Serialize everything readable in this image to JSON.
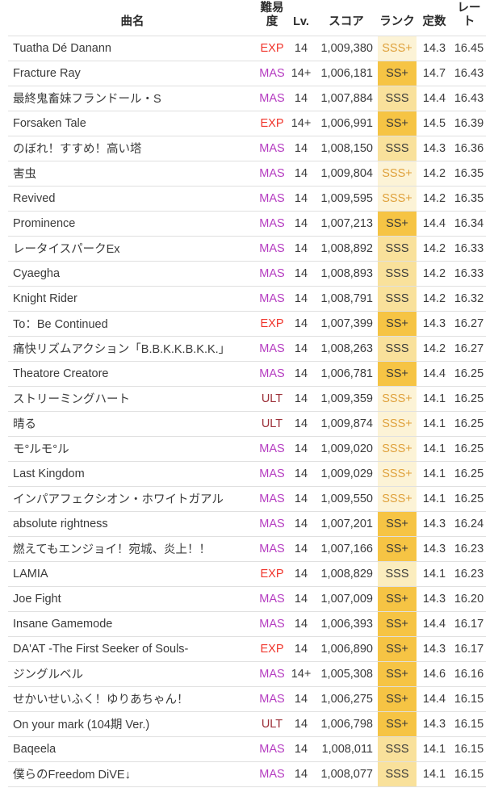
{
  "table": {
    "headers": {
      "song": "曲名",
      "difficulty": "難易度",
      "level": "Lv.",
      "score": "スコア",
      "rank": "ランク",
      "constant": "定数",
      "rate": "レート"
    },
    "rows": [
      {
        "song": "Tuatha Dé Danann",
        "difficulty": "EXP",
        "level": "14",
        "score": "1,009,380",
        "rank": "SSS+",
        "rank_style": "sss_plus",
        "constant": "14.3",
        "rate": "16.45"
      },
      {
        "song": "Fracture Ray",
        "difficulty": "MAS",
        "level": "14+",
        "score": "1,006,181",
        "rank": "SS+",
        "rank_style": "ss_plus",
        "constant": "14.7",
        "rate": "16.43"
      },
      {
        "song": "最終鬼畜妹フランドール・S",
        "difficulty": "MAS",
        "level": "14",
        "score": "1,007,884",
        "rank": "SSS",
        "rank_style": "sss",
        "constant": "14.4",
        "rate": "16.43"
      },
      {
        "song": "Forsaken Tale",
        "difficulty": "EXP",
        "level": "14+",
        "score": "1,006,991",
        "rank": "SS+",
        "rank_style": "ss_plus",
        "constant": "14.5",
        "rate": "16.39"
      },
      {
        "song": "のぼれ！すすめ！高い塔",
        "difficulty": "MAS",
        "level": "14",
        "score": "1,008,150",
        "rank": "SSS",
        "rank_style": "sss",
        "constant": "14.3",
        "rate": "16.36"
      },
      {
        "song": "害虫",
        "difficulty": "MAS",
        "level": "14",
        "score": "1,009,804",
        "rank": "SSS+",
        "rank_style": "sss_plus",
        "constant": "14.2",
        "rate": "16.35"
      },
      {
        "song": "Revived",
        "difficulty": "MAS",
        "level": "14",
        "score": "1,009,595",
        "rank": "SSS+",
        "rank_style": "sss_plus",
        "constant": "14.2",
        "rate": "16.35"
      },
      {
        "song": "Prominence",
        "difficulty": "MAS",
        "level": "14",
        "score": "1,007,213",
        "rank": "SS+",
        "rank_style": "ss_plus",
        "constant": "14.4",
        "rate": "16.34"
      },
      {
        "song": "レータイスパークEx",
        "difficulty": "MAS",
        "level": "14",
        "score": "1,008,892",
        "rank": "SSS",
        "rank_style": "sss",
        "constant": "14.2",
        "rate": "16.33"
      },
      {
        "song": "Cyaegha",
        "difficulty": "MAS",
        "level": "14",
        "score": "1,008,893",
        "rank": "SSS",
        "rank_style": "sss",
        "constant": "14.2",
        "rate": "16.33"
      },
      {
        "song": "Knight Rider",
        "difficulty": "MAS",
        "level": "14",
        "score": "1,008,791",
        "rank": "SSS",
        "rank_style": "sss",
        "constant": "14.2",
        "rate": "16.32"
      },
      {
        "song": "To：Be Continued",
        "difficulty": "EXP",
        "level": "14",
        "score": "1,007,399",
        "rank": "SS+",
        "rank_style": "ss_plus",
        "constant": "14.3",
        "rate": "16.27"
      },
      {
        "song": "痛快リズムアクション「B.B.K.K.B.K.K.」",
        "difficulty": "MAS",
        "level": "14",
        "score": "1,008,263",
        "rank": "SSS",
        "rank_style": "sss",
        "constant": "14.2",
        "rate": "16.27"
      },
      {
        "song": "Theatore Creatore",
        "difficulty": "MAS",
        "level": "14",
        "score": "1,006,781",
        "rank": "SS+",
        "rank_style": "ss_plus",
        "constant": "14.4",
        "rate": "16.25"
      },
      {
        "song": "ストリーミングハート",
        "difficulty": "ULT",
        "level": "14",
        "score": "1,009,359",
        "rank": "SSS+",
        "rank_style": "sss_plus",
        "constant": "14.1",
        "rate": "16.25"
      },
      {
        "song": "晴る",
        "difficulty": "ULT",
        "level": "14",
        "score": "1,009,874",
        "rank": "SSS+",
        "rank_style": "sss_plus",
        "constant": "14.1",
        "rate": "16.25"
      },
      {
        "song": "モ°ルモ°ル",
        "difficulty": "MAS",
        "level": "14",
        "score": "1,009,020",
        "rank": "SSS+",
        "rank_style": "sss_plus",
        "constant": "14.1",
        "rate": "16.25"
      },
      {
        "song": "Last Kingdom",
        "difficulty": "MAS",
        "level": "14",
        "score": "1,009,029",
        "rank": "SSS+",
        "rank_style": "sss_plus",
        "constant": "14.1",
        "rate": "16.25"
      },
      {
        "song": "インパアフェクシオン・ホワイトガアル",
        "difficulty": "MAS",
        "level": "14",
        "score": "1,009,550",
        "rank": "SSS+",
        "rank_style": "sss_plus",
        "constant": "14.1",
        "rate": "16.25"
      },
      {
        "song": "absolute rightness",
        "difficulty": "MAS",
        "level": "14",
        "score": "1,007,201",
        "rank": "SS+",
        "rank_style": "ss_plus",
        "constant": "14.3",
        "rate": "16.24"
      },
      {
        "song": "燃えてもエンジョイ！宛城、炎上！！",
        "difficulty": "MAS",
        "level": "14",
        "score": "1,007,166",
        "rank": "SS+",
        "rank_style": "ss_plus",
        "constant": "14.3",
        "rate": "16.23"
      },
      {
        "song": "LAMIA",
        "difficulty": "EXP",
        "level": "14",
        "score": "1,008,829",
        "rank": "SSS",
        "rank_style": "sss_light",
        "constant": "14.1",
        "rate": "16.23"
      },
      {
        "song": "Joe Fight",
        "difficulty": "MAS",
        "level": "14",
        "score": "1,007,009",
        "rank": "SS+",
        "rank_style": "ss_plus",
        "constant": "14.3",
        "rate": "16.20"
      },
      {
        "song": "Insane Gamemode",
        "difficulty": "MAS",
        "level": "14",
        "score": "1,006,393",
        "rank": "SS+",
        "rank_style": "ss_plus",
        "constant": "14.4",
        "rate": "16.17"
      },
      {
        "song": "DA'AT -The First Seeker of Souls-",
        "difficulty": "EXP",
        "level": "14",
        "score": "1,006,890",
        "rank": "SS+",
        "rank_style": "ss_plus",
        "constant": "14.3",
        "rate": "16.17"
      },
      {
        "song": "ジングルベル",
        "difficulty": "MAS",
        "level": "14+",
        "score": "1,005,308",
        "rank": "SS+",
        "rank_style": "ss_plus",
        "constant": "14.6",
        "rate": "16.16"
      },
      {
        "song": "せかいせいふく！ゆりあちゃん！",
        "difficulty": "MAS",
        "level": "14",
        "score": "1,006,275",
        "rank": "SS+",
        "rank_style": "ss_plus",
        "constant": "14.4",
        "rate": "16.15"
      },
      {
        "song": "On your mark (104期 Ver.)",
        "difficulty": "ULT",
        "level": "14",
        "score": "1,006,798",
        "rank": "SS+",
        "rank_style": "ss_plus",
        "constant": "14.3",
        "rate": "16.15"
      },
      {
        "song": "Baqeela",
        "difficulty": "MAS",
        "level": "14",
        "score": "1,008,011",
        "rank": "SSS",
        "rank_style": "sss",
        "constant": "14.1",
        "rate": "16.15"
      },
      {
        "song": "僕らのFreedom DiVE↓",
        "difficulty": "MAS",
        "level": "14",
        "score": "1,008,077",
        "rank": "SSS",
        "rank_style": "sss",
        "constant": "14.1",
        "rate": "16.15"
      }
    ]
  },
  "colors": {
    "difficulty": {
      "EXP": "#f0342b",
      "MAS": "#b53cc1",
      "ULT": "#9c2f38"
    },
    "rank_styles": {
      "sss_plus": {
        "bg": "#fcf3d6",
        "text": "#dfa13c"
      },
      "sss": {
        "bg": "#f9e19b",
        "text": "#3a3a3a"
      },
      "sss_light": {
        "bg": "#fbedbe",
        "text": "#3a3a3a"
      },
      "ss_plus": {
        "bg": "#f6c444",
        "text": "#3a3a3a"
      }
    }
  }
}
